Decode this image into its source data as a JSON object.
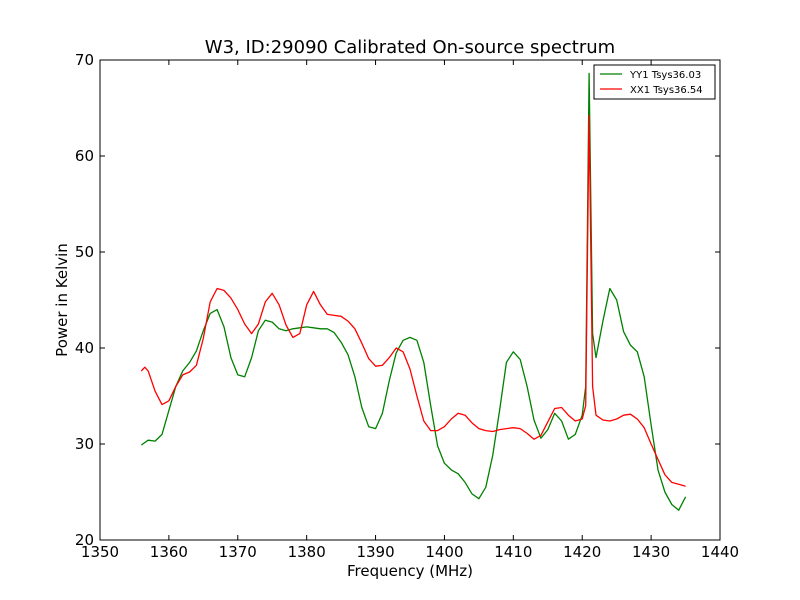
{
  "chart_data": {
    "type": "line",
    "title": "W3, ID:29090 Calibrated On-source spectrum",
    "xlabel": "Frequency (MHz)",
    "ylabel": "Power in Kelvin",
    "xlim": [
      1350,
      1440
    ],
    "ylim": [
      20,
      70
    ],
    "xticks": [
      "1350",
      "1360",
      "1370",
      "1380",
      "1390",
      "1400",
      "1410",
      "1420",
      "1430",
      "1440"
    ],
    "yticks": [
      "20",
      "30",
      "40",
      "50",
      "60",
      "70"
    ],
    "grid": false,
    "legend_position": "top-right",
    "series": [
      {
        "name": "YY1 Tsys36.03",
        "color": "#008000",
        "points": [
          [
            1356,
            29.9
          ],
          [
            1357,
            30.4
          ],
          [
            1358,
            30.3
          ],
          [
            1359,
            31.0
          ],
          [
            1360,
            33.5
          ],
          [
            1361,
            36.0
          ],
          [
            1362,
            37.6
          ],
          [
            1363,
            38.5
          ],
          [
            1364,
            39.7
          ],
          [
            1365,
            41.8
          ],
          [
            1366,
            43.6
          ],
          [
            1367,
            44.0
          ],
          [
            1368,
            42.2
          ],
          [
            1369,
            39.0
          ],
          [
            1370,
            37.2
          ],
          [
            1371,
            37.0
          ],
          [
            1372,
            39.0
          ],
          [
            1373,
            41.8
          ],
          [
            1374,
            42.9
          ],
          [
            1375,
            42.7
          ],
          [
            1376,
            42.0
          ],
          [
            1377,
            41.8
          ],
          [
            1378,
            42.0
          ],
          [
            1379,
            42.1
          ],
          [
            1380,
            42.2
          ],
          [
            1381,
            42.1
          ],
          [
            1382,
            42.0
          ],
          [
            1383,
            42.0
          ],
          [
            1384,
            41.6
          ],
          [
            1385,
            40.6
          ],
          [
            1386,
            39.3
          ],
          [
            1387,
            37.0
          ],
          [
            1388,
            33.8
          ],
          [
            1389,
            31.8
          ],
          [
            1390,
            31.6
          ],
          [
            1391,
            33.2
          ],
          [
            1392,
            36.6
          ],
          [
            1393,
            39.5
          ],
          [
            1394,
            40.8
          ],
          [
            1395,
            41.1
          ],
          [
            1396,
            40.8
          ],
          [
            1397,
            38.5
          ],
          [
            1398,
            34.0
          ],
          [
            1399,
            29.8
          ],
          [
            1400,
            28.0
          ],
          [
            1401,
            27.3
          ],
          [
            1402,
            26.9
          ],
          [
            1403,
            26.0
          ],
          [
            1404,
            24.8
          ],
          [
            1405,
            24.3
          ],
          [
            1406,
            25.5
          ],
          [
            1407,
            28.8
          ],
          [
            1408,
            33.5
          ],
          [
            1409,
            38.5
          ],
          [
            1410,
            39.6
          ],
          [
            1411,
            38.8
          ],
          [
            1412,
            36.0
          ],
          [
            1413,
            32.5
          ],
          [
            1414,
            30.6
          ],
          [
            1415,
            31.5
          ],
          [
            1416,
            33.2
          ],
          [
            1417,
            32.4
          ],
          [
            1418,
            30.5
          ],
          [
            1419,
            31.0
          ],
          [
            1420,
            33.0
          ],
          [
            1420.5,
            36.0
          ],
          [
            1421,
            68.6
          ],
          [
            1421.5,
            41.5
          ],
          [
            1422,
            39.0
          ],
          [
            1423,
            42.8
          ],
          [
            1424,
            46.2
          ],
          [
            1425,
            45.0
          ],
          [
            1426,
            41.7
          ],
          [
            1427,
            40.3
          ],
          [
            1428,
            39.6
          ],
          [
            1429,
            37.0
          ],
          [
            1430,
            32.0
          ],
          [
            1431,
            27.3
          ],
          [
            1432,
            25.0
          ],
          [
            1433,
            23.7
          ],
          [
            1434,
            23.1
          ],
          [
            1435,
            24.5
          ]
        ]
      },
      {
        "name": "XX1 Tsys36.54",
        "color": "#ff0000",
        "points": [
          [
            1356,
            37.6
          ],
          [
            1356.5,
            38.0
          ],
          [
            1357,
            37.6
          ],
          [
            1358,
            35.5
          ],
          [
            1359,
            34.1
          ],
          [
            1360,
            34.5
          ],
          [
            1361,
            36.0
          ],
          [
            1362,
            37.2
          ],
          [
            1363,
            37.5
          ],
          [
            1364,
            38.2
          ],
          [
            1365,
            41.0
          ],
          [
            1366,
            44.8
          ],
          [
            1367,
            46.2
          ],
          [
            1368,
            46.0
          ],
          [
            1369,
            45.2
          ],
          [
            1370,
            44.0
          ],
          [
            1371,
            42.5
          ],
          [
            1372,
            41.5
          ],
          [
            1373,
            42.5
          ],
          [
            1374,
            44.8
          ],
          [
            1375,
            45.7
          ],
          [
            1376,
            44.5
          ],
          [
            1377,
            42.4
          ],
          [
            1378,
            41.1
          ],
          [
            1379,
            41.5
          ],
          [
            1380,
            44.5
          ],
          [
            1381,
            45.9
          ],
          [
            1382,
            44.5
          ],
          [
            1383,
            43.5
          ],
          [
            1384,
            43.4
          ],
          [
            1385,
            43.3
          ],
          [
            1386,
            42.8
          ],
          [
            1387,
            42.0
          ],
          [
            1388,
            40.5
          ],
          [
            1389,
            38.9
          ],
          [
            1390,
            38.1
          ],
          [
            1391,
            38.2
          ],
          [
            1392,
            39.0
          ],
          [
            1393,
            40.0
          ],
          [
            1394,
            39.6
          ],
          [
            1395,
            37.8
          ],
          [
            1396,
            35.0
          ],
          [
            1397,
            32.4
          ],
          [
            1398,
            31.4
          ],
          [
            1399,
            31.4
          ],
          [
            1400,
            31.8
          ],
          [
            1401,
            32.6
          ],
          [
            1402,
            33.2
          ],
          [
            1403,
            33.0
          ],
          [
            1404,
            32.2
          ],
          [
            1405,
            31.6
          ],
          [
            1406,
            31.4
          ],
          [
            1407,
            31.3
          ],
          [
            1408,
            31.5
          ],
          [
            1409,
            31.6
          ],
          [
            1410,
            31.7
          ],
          [
            1411,
            31.6
          ],
          [
            1412,
            31.1
          ],
          [
            1413,
            30.5
          ],
          [
            1414,
            30.9
          ],
          [
            1415,
            32.3
          ],
          [
            1416,
            33.7
          ],
          [
            1417,
            33.8
          ],
          [
            1418,
            33.0
          ],
          [
            1419,
            32.4
          ],
          [
            1420,
            32.6
          ],
          [
            1420.5,
            34.0
          ],
          [
            1421,
            64.2
          ],
          [
            1421.5,
            36.0
          ],
          [
            1422,
            33.0
          ],
          [
            1423,
            32.5
          ],
          [
            1424,
            32.4
          ],
          [
            1425,
            32.6
          ],
          [
            1426,
            33.0
          ],
          [
            1427,
            33.1
          ],
          [
            1428,
            32.6
          ],
          [
            1429,
            31.7
          ],
          [
            1430,
            30.0
          ],
          [
            1431,
            28.4
          ],
          [
            1432,
            26.8
          ],
          [
            1433,
            26.0
          ],
          [
            1434,
            25.8
          ],
          [
            1435,
            25.6
          ]
        ]
      }
    ]
  }
}
